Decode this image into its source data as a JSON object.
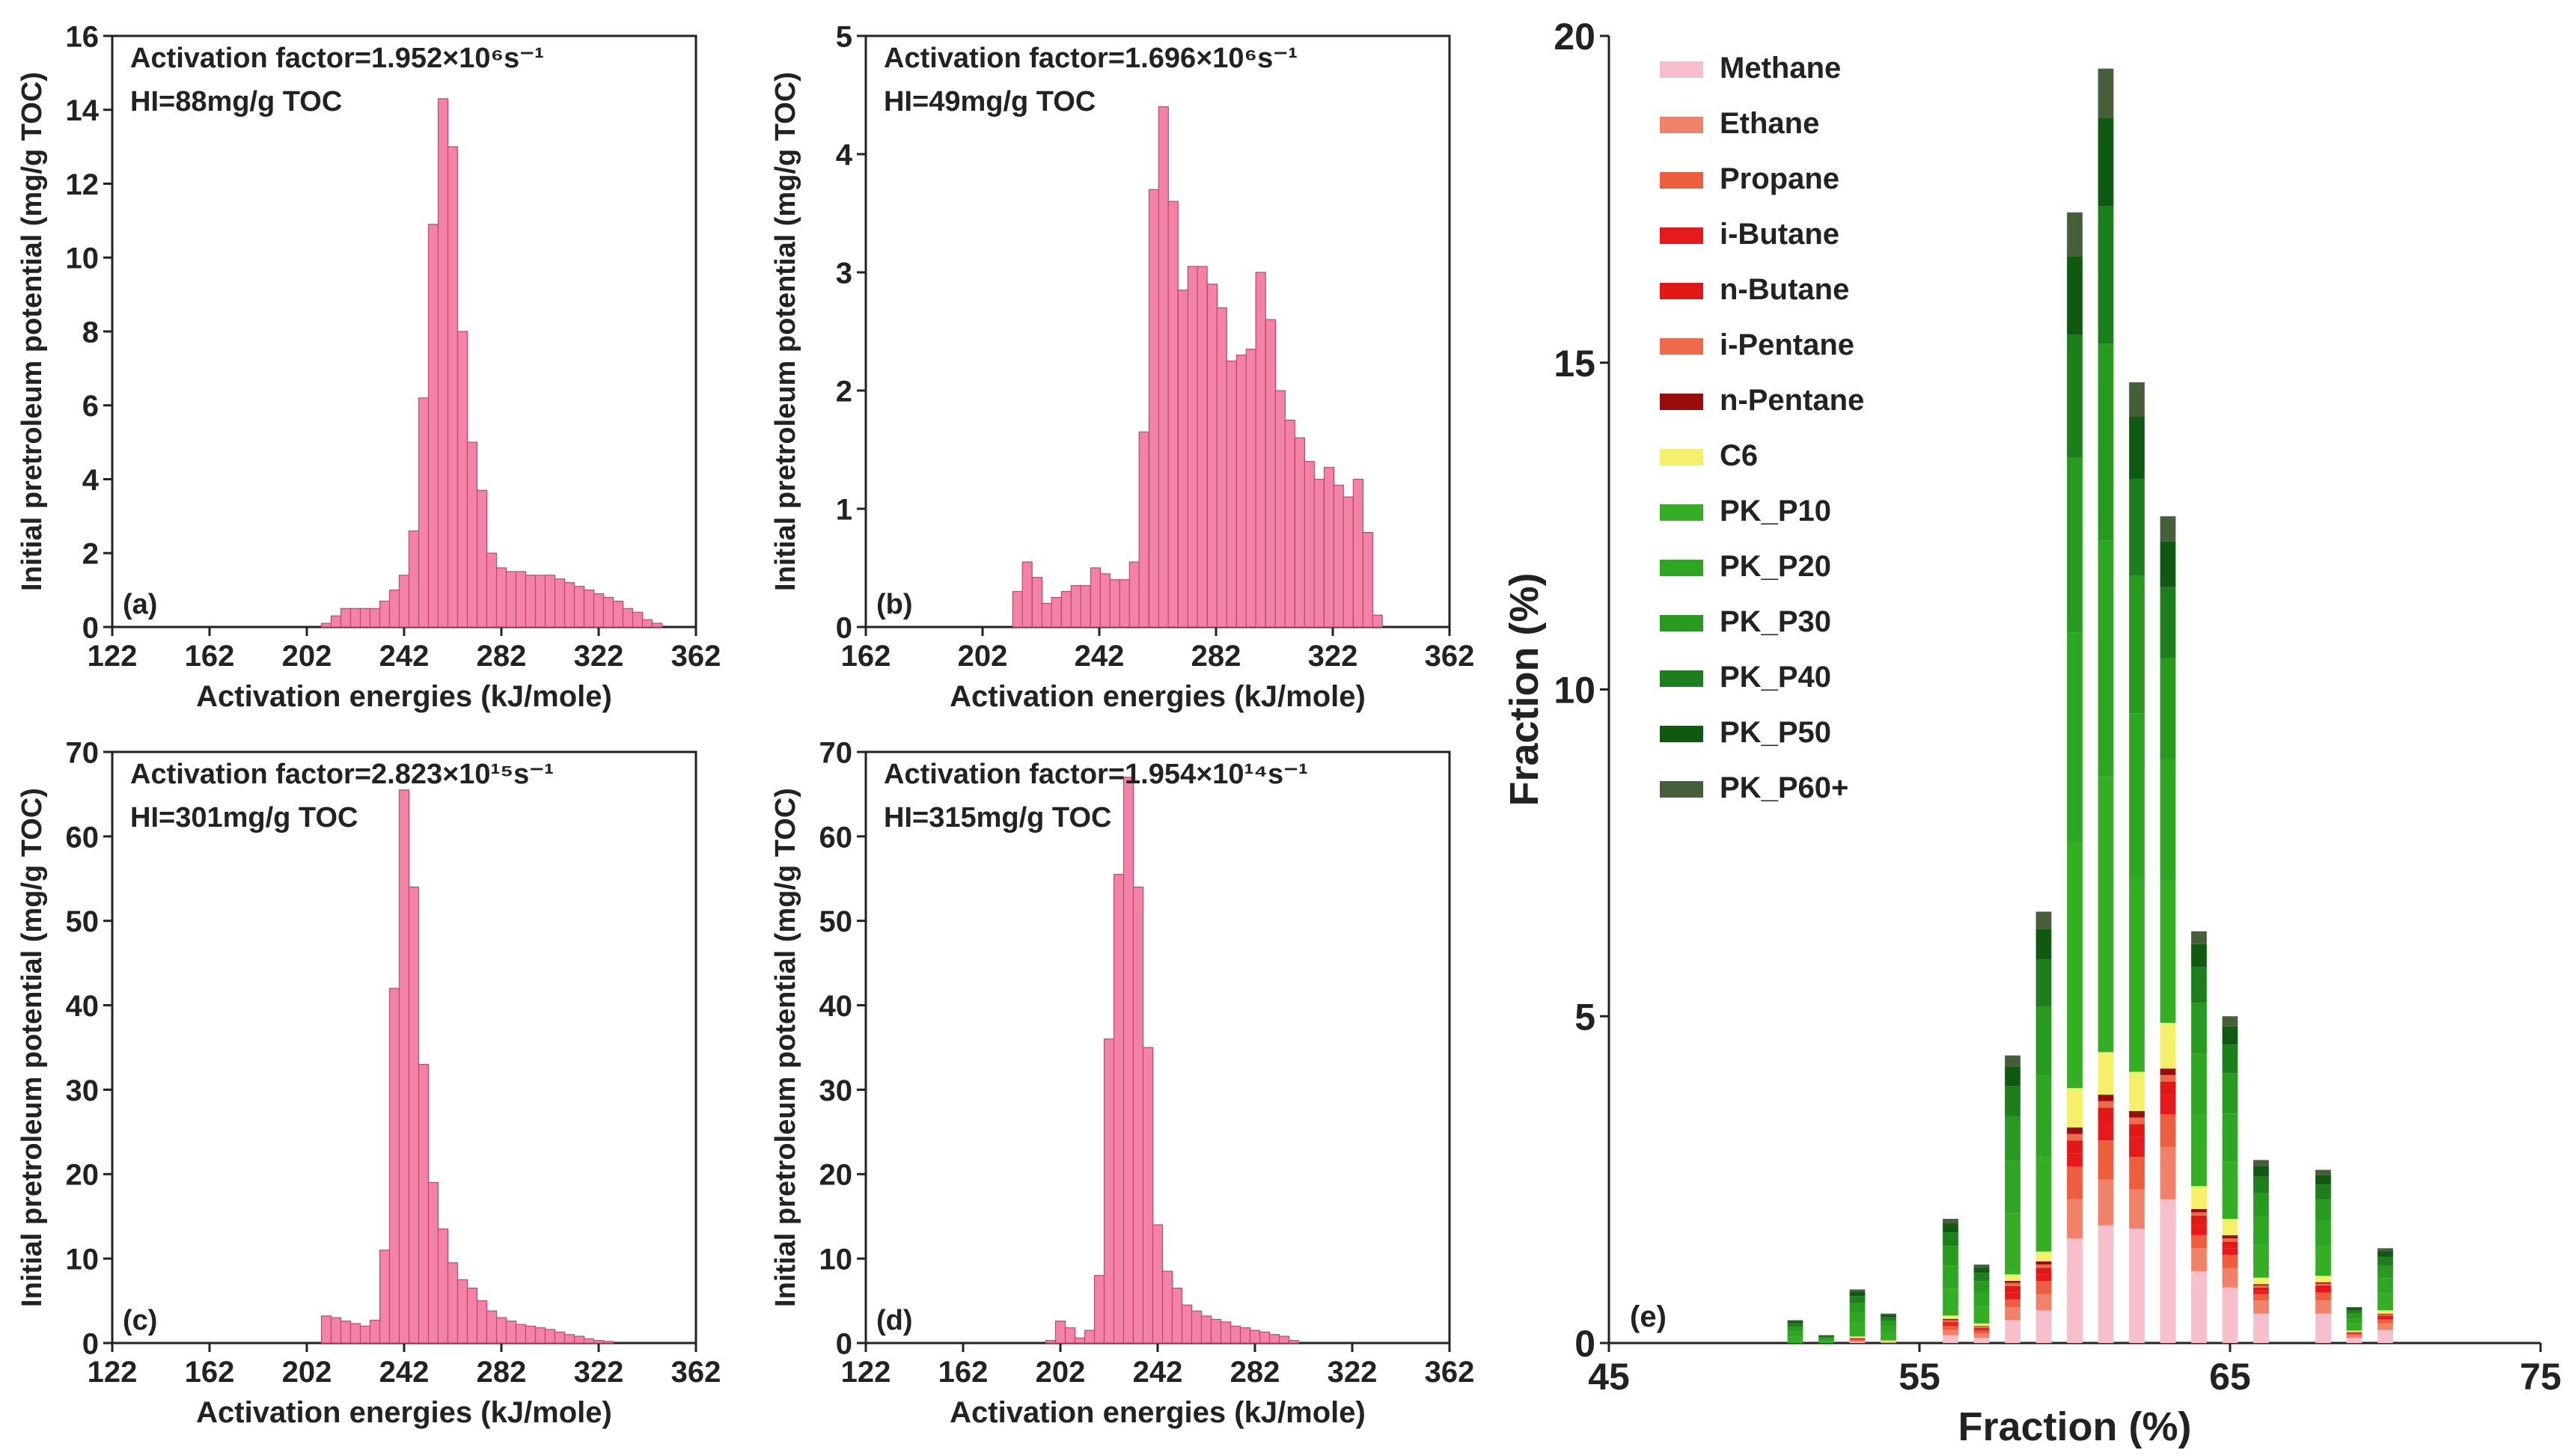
{
  "colors": {
    "histogram_fill": "#f283a6",
    "histogram_stroke": "#c2466f",
    "axis": "#222222"
  },
  "chart_data": [
    {
      "id": "a",
      "type": "bar",
      "panel_label": "(a)",
      "annotation_line1": "Activation factor=1.952×10⁶s⁻¹",
      "annotation_line2": "HI=88mg/g TOC",
      "xlabel": "Activation energies (kJ/mole)",
      "ylabel": "Initial pretroleum potential (mg/g TOC)",
      "xlim": [
        122,
        362
      ],
      "ylim": [
        0,
        16
      ],
      "xticks": [
        122,
        162,
        202,
        242,
        282,
        322,
        362
      ],
      "yticks": [
        0,
        2,
        4,
        6,
        8,
        10,
        12,
        14,
        16
      ],
      "bin_width": 4,
      "x": [
        210,
        214,
        218,
        222,
        226,
        230,
        234,
        238,
        242,
        246,
        250,
        254,
        258,
        262,
        266,
        270,
        274,
        278,
        282,
        286,
        290,
        294,
        298,
        302,
        306,
        310,
        314,
        318,
        322,
        326,
        330,
        334,
        338,
        342,
        346
      ],
      "values": [
        0.1,
        0.3,
        0.5,
        0.5,
        0.5,
        0.5,
        0.7,
        1.0,
        1.4,
        2.6,
        6.2,
        10.9,
        14.3,
        13.0,
        8.0,
        5.0,
        3.7,
        2.0,
        1.6,
        1.5,
        1.5,
        1.4,
        1.4,
        1.4,
        1.3,
        1.2,
        1.1,
        1.0,
        0.9,
        0.8,
        0.7,
        0.5,
        0.4,
        0.2,
        0.1
      ]
    },
    {
      "id": "b",
      "type": "bar",
      "panel_label": "(b)",
      "annotation_line1": "Activation factor=1.696×10⁶s⁻¹",
      "annotation_line2": "HI=49mg/g TOC",
      "xlabel": "Activation energies (kJ/mole)",
      "ylabel": "Initial pretroleum potential (mg/g TOC)",
      "xlim": [
        162,
        362
      ],
      "ylim": [
        0,
        5
      ],
      "xticks": [
        162,
        202,
        242,
        282,
        322,
        362
      ],
      "yticks": [
        0,
        1,
        2,
        3,
        4,
        5
      ],
      "bin_width": 3.33,
      "x": [
        214,
        217.3,
        220.7,
        224,
        227.3,
        230.7,
        234,
        237.3,
        240.7,
        244,
        247.3,
        250.7,
        254,
        257.3,
        260.7,
        264,
        267.3,
        270.7,
        274,
        277.3,
        280.7,
        284,
        287.3,
        290.7,
        294,
        297.3,
        300.7,
        304,
        307.3,
        310.7,
        314,
        317.3,
        320.7,
        324,
        327.3,
        330.7,
        334,
        337.3
      ],
      "values": [
        0.3,
        0.55,
        0.42,
        0.2,
        0.25,
        0.3,
        0.35,
        0.35,
        0.5,
        0.45,
        0.4,
        0.4,
        0.55,
        1.65,
        3.7,
        4.4,
        3.6,
        2.85,
        3.05,
        3.05,
        2.9,
        2.7,
        2.25,
        2.3,
        2.35,
        3.0,
        2.6,
        2.0,
        1.75,
        1.6,
        1.4,
        1.25,
        1.35,
        1.2,
        1.1,
        1.25,
        0.8,
        0.1
      ]
    },
    {
      "id": "c",
      "type": "bar",
      "panel_label": "(c)",
      "annotation_line1": "Activation factor=2.823×10¹⁵s⁻¹",
      "annotation_line2": "HI=301mg/g TOC",
      "xlabel": "Activation energies (kJ/mole)",
      "ylabel": "Initial pretroleum potential (mg/g TOC)",
      "xlim": [
        122,
        362
      ],
      "ylim": [
        0,
        70
      ],
      "xticks": [
        122,
        162,
        202,
        242,
        282,
        322,
        362
      ],
      "yticks": [
        0,
        10,
        20,
        30,
        40,
        50,
        60,
        70
      ],
      "bin_width": 4,
      "x": [
        210,
        214,
        218,
        222,
        226,
        230,
        234,
        238,
        242,
        246,
        250,
        254,
        258,
        262,
        266,
        270,
        274,
        278,
        282,
        286,
        290,
        294,
        298,
        302,
        306,
        310,
        314,
        318,
        322,
        326
      ],
      "values": [
        3.2,
        3.0,
        2.6,
        2.3,
        2.0,
        2.7,
        11.0,
        42.0,
        65.5,
        54.0,
        33.0,
        19.0,
        13.5,
        9.5,
        7.5,
        6.5,
        5.0,
        3.8,
        3.0,
        2.6,
        2.2,
        2.0,
        1.8,
        1.6,
        1.3,
        1.0,
        0.8,
        0.5,
        0.3,
        0.2
      ]
    },
    {
      "id": "d",
      "type": "bar",
      "panel_label": "(d)",
      "annotation_line1": "Activation factor=1.954×10¹⁴s⁻¹",
      "annotation_line2": "HI=315mg/g TOC",
      "xlabel": "Activation energies (kJ/mole)",
      "ylabel": "Initial pretroleum potential (mg/g TOC)",
      "xlim": [
        122,
        362
      ],
      "ylim": [
        0,
        70
      ],
      "xticks": [
        122,
        162,
        202,
        242,
        282,
        322,
        362
      ],
      "yticks": [
        0,
        10,
        20,
        30,
        40,
        50,
        60,
        70
      ],
      "bin_width": 4,
      "x": [
        198,
        202,
        206,
        210,
        214,
        218,
        222,
        226,
        230,
        234,
        238,
        242,
        246,
        250,
        254,
        258,
        262,
        266,
        270,
        274,
        278,
        282,
        286,
        290,
        294,
        298
      ],
      "values": [
        0.3,
        2.6,
        1.8,
        0.6,
        1.5,
        8.0,
        36.0,
        55.5,
        67.0,
        54.0,
        35.0,
        14.0,
        8.5,
        6.5,
        4.5,
        3.8,
        3.2,
        2.8,
        2.5,
        2.0,
        1.8,
        1.5,
        1.3,
        1.0,
        0.8,
        0.3
      ]
    },
    {
      "id": "e",
      "type": "bar",
      "stacked": true,
      "panel_label": "(e)",
      "xlabel": "Fraction (%)",
      "ylabel": "Fraction (%)",
      "xlim": [
        45,
        75
      ],
      "ylim": [
        0,
        20
      ],
      "xticks": [
        45,
        55,
        65,
        75
      ],
      "yticks": [
        0,
        5,
        10,
        15,
        20
      ],
      "legend_position": "top-left",
      "component_order": [
        "Methane",
        "Ethane",
        "Propane",
        "i-Butane",
        "n-Butane",
        "i-Pentane",
        "n-Pentane",
        "C6",
        "PK_P10",
        "PK_P20",
        "PK_P30",
        "PK_P40",
        "PK_P50",
        "PK_P60+"
      ],
      "component_colors": [
        "#f6bfcb",
        "#f0826a",
        "#ec5e3e",
        "#e6191d",
        "#e21818",
        "#ee6a4a",
        "#9b0d0d",
        "#f5f069",
        "#35ad25",
        "#2fa623",
        "#279a1f",
        "#1c7f1b",
        "#0f5a10",
        "#465f3a"
      ],
      "x": [
        51,
        52,
        53,
        54,
        56,
        57,
        58,
        59,
        60,
        61,
        62,
        63,
        64,
        65,
        66,
        68,
        69,
        70
      ],
      "totals": [
        0.35,
        0.12,
        0.82,
        0.45,
        1.9,
        1.2,
        4.4,
        6.6,
        17.3,
        19.5,
        14.7,
        12.65,
        6.3,
        5.0,
        2.8,
        2.65,
        0.55,
        1.45
      ],
      "gas_components": [
        [
          0,
          0,
          0,
          0,
          0,
          0,
          0,
          0
        ],
        [
          0,
          0,
          0,
          0,
          0,
          0,
          0,
          0
        ],
        [
          0.02,
          0.02,
          0.01,
          0.01,
          0.01,
          0.01,
          0,
          0.02
        ],
        [
          0.01,
          0.01,
          0,
          0,
          0,
          0,
          0,
          0.02
        ],
        [
          0.12,
          0.08,
          0.06,
          0.03,
          0.03,
          0.03,
          0.02,
          0.05
        ],
        [
          0.08,
          0.06,
          0.05,
          0.02,
          0.02,
          0.02,
          0.01,
          0.04
        ],
        [
          0.35,
          0.2,
          0.12,
          0.1,
          0.1,
          0.05,
          0.03,
          0.1
        ],
        [
          0.5,
          0.25,
          0.2,
          0.1,
          0.1,
          0.05,
          0.05,
          0.15
        ],
        [
          1.6,
          0.6,
          0.5,
          0.2,
          0.2,
          0.1,
          0.1,
          0.6
        ],
        [
          1.8,
          0.7,
          0.6,
          0.3,
          0.2,
          0.1,
          0.1,
          0.65
        ],
        [
          1.75,
          0.6,
          0.5,
          0.3,
          0.2,
          0.1,
          0.1,
          0.6
        ],
        [
          2.2,
          0.8,
          0.5,
          0.3,
          0.2,
          0.1,
          0.1,
          0.7
        ],
        [
          1.1,
          0.35,
          0.2,
          0.15,
          0.15,
          0.05,
          0.05,
          0.35
        ],
        [
          0.85,
          0.3,
          0.2,
          0.1,
          0.1,
          0.05,
          0.05,
          0.25
        ],
        [
          0.45,
          0.2,
          0.1,
          0.05,
          0.05,
          0.03,
          0.02,
          0.1
        ],
        [
          0.45,
          0.2,
          0.12,
          0.06,
          0.05,
          0.03,
          0.02,
          0.1
        ],
        [
          0.08,
          0.04,
          0.02,
          0.01,
          0.01,
          0.01,
          0,
          0.02
        ],
        [
          0.2,
          0.1,
          0.06,
          0.03,
          0.03,
          0.02,
          0.01,
          0.05
        ]
      ]
    }
  ]
}
